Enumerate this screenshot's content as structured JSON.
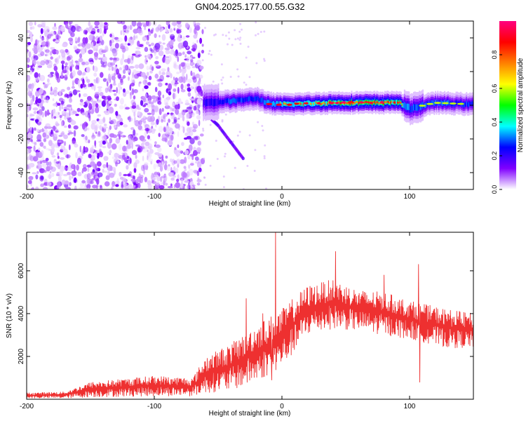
{
  "title": "GN04.2025.177.00.55.G32",
  "chart_data": [
    {
      "type": "heatmap",
      "title": "",
      "xlabel": "Height of straight line (km)",
      "ylabel": "Frequency (Hz)",
      "xlim": [
        -200,
        150
      ],
      "ylim": [
        -50,
        50
      ],
      "xticks": [
        -200,
        -100,
        0,
        100
      ],
      "yticks": [
        -40,
        -20,
        0,
        20,
        40
      ],
      "colorbar": {
        "label": "Normalized spectral amplitude",
        "range": [
          0,
          1
        ],
        "ticks": [
          0.0,
          0.2,
          0.4,
          0.6,
          0.8
        ],
        "colors": [
          "#ffffff",
          "#8000ff",
          "#0000ff",
          "#00ffff",
          "#00ff00",
          "#ffff00",
          "#ff8000",
          "#ff0000",
          "#ff0080"
        ]
      },
      "regions": [
        {
          "name": "noise",
          "x_range": [
            -200,
            -62
          ],
          "freq_range": [
            -50,
            50
          ],
          "amplitude_range": [
            0.0,
            0.25
          ]
        },
        {
          "name": "signal-ridge",
          "x_range": [
            -62,
            150
          ],
          "center_freq": 1.0,
          "halfwidth_hz": 3.0,
          "peak_amplitude": 0.95
        }
      ],
      "ridge": [
        {
          "x": -65,
          "f": 1.5,
          "amp": 0.35
        },
        {
          "x": -50,
          "f": 2.0,
          "amp": 0.45
        },
        {
          "x": -40,
          "f": 2.5,
          "amp": 0.55
        },
        {
          "x": -20,
          "f": 4.0,
          "amp": 0.5
        },
        {
          "x": -10,
          "f": 1.0,
          "amp": 0.6
        },
        {
          "x": 0,
          "f": 0.5,
          "amp": 0.75
        },
        {
          "x": 20,
          "f": 1.0,
          "amp": 0.8
        },
        {
          "x": 40,
          "f": 1.5,
          "amp": 0.85
        },
        {
          "x": 60,
          "f": 1.5,
          "amp": 0.9
        },
        {
          "x": 80,
          "f": 1.5,
          "amp": 0.9
        },
        {
          "x": 90,
          "f": 2.0,
          "amp": 0.85
        },
        {
          "x": 100,
          "f": -2.0,
          "amp": 0.55
        },
        {
          "x": 120,
          "f": 1.5,
          "amp": 0.6
        },
        {
          "x": 150,
          "f": 0.5,
          "amp": 0.5
        }
      ],
      "streak": [
        {
          "x": -60,
          "f": -5
        },
        {
          "x": -50,
          "f": -12
        },
        {
          "x": -40,
          "f": -22
        },
        {
          "x": -30,
          "f": -32
        }
      ]
    },
    {
      "type": "line",
      "title": "",
      "xlabel": "Height of straight line (km)",
      "ylabel": "SNR (10 * v/v)",
      "xlim": [
        -200,
        150
      ],
      "ylim": [
        0,
        7800
      ],
      "xticks": [
        -200,
        -100,
        0,
        100
      ],
      "yticks": [
        2000,
        4000,
        6000
      ],
      "color": "#ee3030",
      "envelope": [
        {
          "x": -200,
          "lo": 50,
          "hi": 300
        },
        {
          "x": -170,
          "lo": 50,
          "hi": 350
        },
        {
          "x": -150,
          "lo": 100,
          "hi": 800
        },
        {
          "x": -100,
          "lo": 150,
          "hi": 1100
        },
        {
          "x": -70,
          "lo": 150,
          "hi": 1000
        },
        {
          "x": -60,
          "lo": 300,
          "hi": 2000
        },
        {
          "x": -40,
          "lo": 400,
          "hi": 2600
        },
        {
          "x": -20,
          "lo": 800,
          "hi": 3500
        },
        {
          "x": 0,
          "lo": 1500,
          "hi": 4200
        },
        {
          "x": 10,
          "lo": 2200,
          "hi": 4800
        },
        {
          "x": 20,
          "lo": 3000,
          "hi": 5300
        },
        {
          "x": 40,
          "lo": 3300,
          "hi": 5600
        },
        {
          "x": 60,
          "lo": 3200,
          "hi": 5100
        },
        {
          "x": 80,
          "lo": 3000,
          "hi": 5000
        },
        {
          "x": 100,
          "lo": 2800,
          "hi": 4600
        },
        {
          "x": 130,
          "lo": 2400,
          "hi": 4200
        },
        {
          "x": 150,
          "lo": 2400,
          "hi": 4000
        }
      ],
      "spikes": [
        {
          "x": -5,
          "y": 7800
        },
        {
          "x": 42,
          "y": 6900
        },
        {
          "x": 107,
          "y": 6300
        },
        {
          "x": -28,
          "y": 4700
        },
        {
          "x": -15,
          "y": 4000
        },
        {
          "x": 80,
          "y": 5800
        },
        {
          "x": -8,
          "y": 900
        },
        {
          "x": 108,
          "y": 800
        }
      ]
    }
  ]
}
